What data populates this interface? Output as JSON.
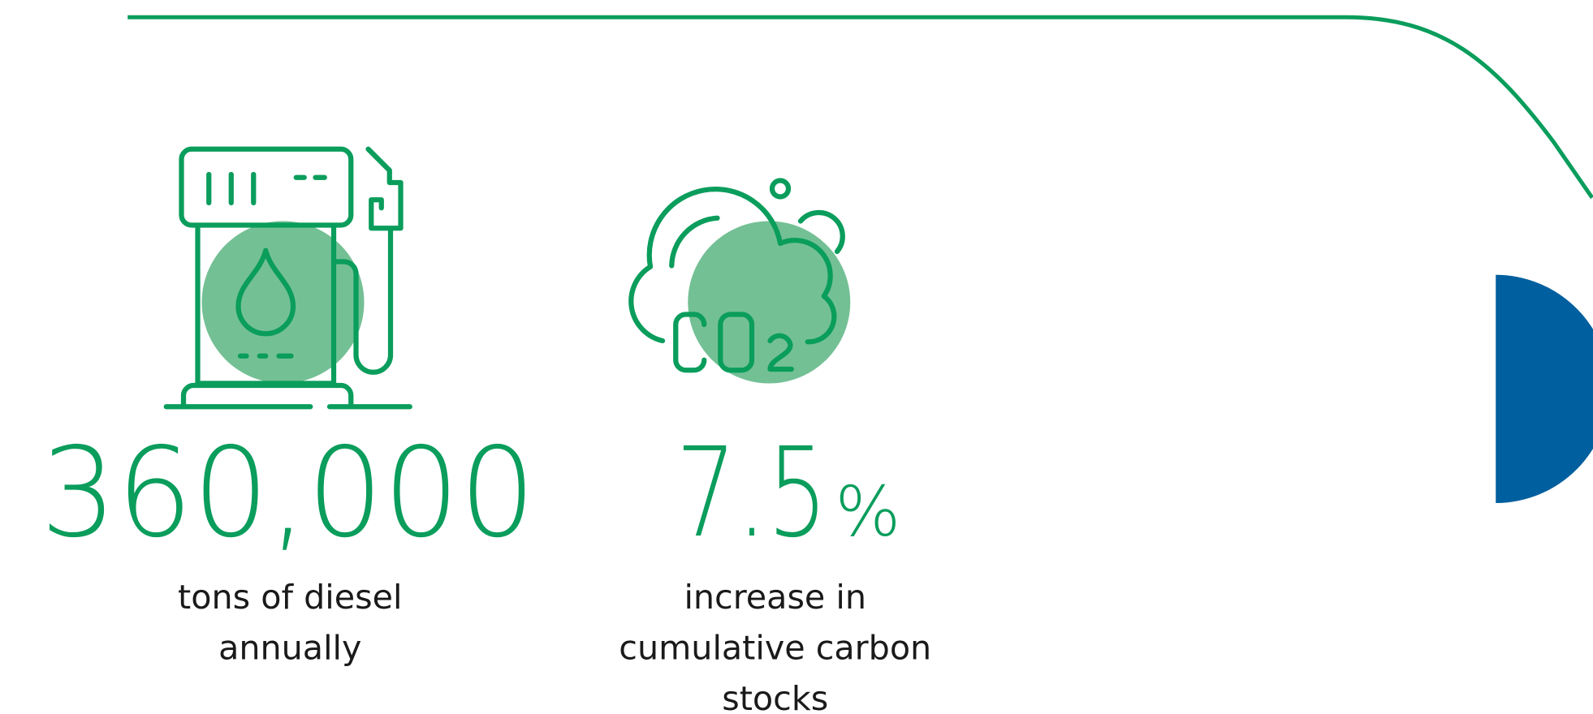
{
  "stats": [
    {
      "value": "360,000",
      "label_lines": [
        "tons of diesel",
        "annually"
      ]
    },
    {
      "value": "7.5",
      "unit": "%",
      "label_lines": [
        "increase in",
        "cumulative carbon",
        "stocks"
      ]
    }
  ]
}
